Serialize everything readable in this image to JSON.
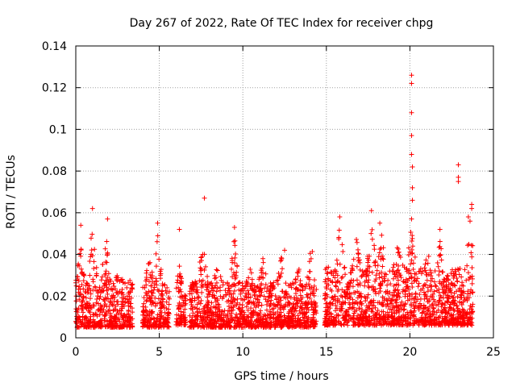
{
  "chart_data": {
    "type": "scatter",
    "title": "Day 267 of 2022, Rate Of TEC Index for receiver chpg",
    "xlabel": "GPS time / hours",
    "ylabel": "ROTI / TECUs",
    "xlim": [
      0,
      25
    ],
    "ylim": [
      0,
      0.14
    ],
    "x_ticks": [
      0,
      5,
      10,
      15,
      20,
      25
    ],
    "y_ticks": [
      0,
      0.02,
      0.04,
      0.06,
      0.08,
      0.1,
      0.12,
      0.14
    ],
    "x_tick_labels": [
      "0",
      "5",
      "10",
      "15",
      "20",
      "25"
    ],
    "y_tick_labels": [
      "0",
      "0.02",
      "0.04",
      "0.06",
      "0.08",
      "0.1",
      "0.12",
      "0.14"
    ],
    "grid": true,
    "marker": "+",
    "color": "#ff0000",
    "data_gaps_hours": [
      [
        3.4,
        4.0
      ],
      [
        5.6,
        6.0
      ],
      [
        6.6,
        6.8
      ],
      [
        14.4,
        14.9
      ]
    ],
    "series": [
      {
        "name": "ROTI",
        "notable_points": [
          {
            "x": 0.3,
            "y": 0.054
          },
          {
            "x": 1.0,
            "y": 0.062
          },
          {
            "x": 1.9,
            "y": 0.057
          },
          {
            "x": 4.9,
            "y": 0.055
          },
          {
            "x": 6.2,
            "y": 0.052
          },
          {
            "x": 7.7,
            "y": 0.067
          },
          {
            "x": 9.5,
            "y": 0.053
          },
          {
            "x": 12.5,
            "y": 0.042
          },
          {
            "x": 15.8,
            "y": 0.058
          },
          {
            "x": 17.7,
            "y": 0.061
          },
          {
            "x": 18.2,
            "y": 0.055
          },
          {
            "x": 20.1,
            "y": 0.126
          },
          {
            "x": 20.1,
            "y": 0.122
          },
          {
            "x": 20.1,
            "y": 0.108
          },
          {
            "x": 20.1,
            "y": 0.097
          },
          {
            "x": 20.1,
            "y": 0.088
          },
          {
            "x": 20.15,
            "y": 0.082
          },
          {
            "x": 20.15,
            "y": 0.072
          },
          {
            "x": 20.15,
            "y": 0.066
          },
          {
            "x": 20.1,
            "y": 0.057
          },
          {
            "x": 21.8,
            "y": 0.052
          },
          {
            "x": 22.9,
            "y": 0.083
          },
          {
            "x": 22.9,
            "y": 0.077
          },
          {
            "x": 22.9,
            "y": 0.075
          },
          {
            "x": 23.7,
            "y": 0.064
          },
          {
            "x": 23.7,
            "y": 0.062
          },
          {
            "x": 23.5,
            "y": 0.058
          },
          {
            "x": 23.6,
            "y": 0.056
          }
        ],
        "segments": [
          {
            "start": 0.0,
            "end": 3.4,
            "base_min": 0.005,
            "base_max": 0.028,
            "peaks": [
              {
                "x": 0.3,
                "y": 0.045
              },
              {
                "x": 1.0,
                "y": 0.058
              },
              {
                "x": 1.8,
                "y": 0.05
              },
              {
                "x": 2.5,
                "y": 0.035
              }
            ]
          },
          {
            "start": 4.0,
            "end": 5.6,
            "base_min": 0.005,
            "base_max": 0.026,
            "peaks": [
              {
                "x": 4.4,
                "y": 0.04
              },
              {
                "x": 4.9,
                "y": 0.05
              }
            ]
          },
          {
            "start": 6.0,
            "end": 6.6,
            "base_min": 0.006,
            "base_max": 0.022,
            "peaks": [
              {
                "x": 6.2,
                "y": 0.035
              }
            ]
          },
          {
            "start": 6.8,
            "end": 14.4,
            "base_min": 0.005,
            "base_max": 0.027,
            "peaks": [
              {
                "x": 7.6,
                "y": 0.055
              },
              {
                "x": 8.5,
                "y": 0.038
              },
              {
                "x": 9.5,
                "y": 0.05
              },
              {
                "x": 10.5,
                "y": 0.036
              },
              {
                "x": 11.2,
                "y": 0.042
              },
              {
                "x": 12.3,
                "y": 0.04
              },
              {
                "x": 13.4,
                "y": 0.035
              },
              {
                "x": 14.1,
                "y": 0.046
              }
            ]
          },
          {
            "start": 14.9,
            "end": 23.8,
            "base_min": 0.006,
            "base_max": 0.034,
            "peaks": [
              {
                "x": 15.8,
                "y": 0.055
              },
              {
                "x": 16.8,
                "y": 0.048
              },
              {
                "x": 17.7,
                "y": 0.058
              },
              {
                "x": 18.3,
                "y": 0.05
              },
              {
                "x": 19.3,
                "y": 0.046
              },
              {
                "x": 20.1,
                "y": 0.06
              },
              {
                "x": 21.1,
                "y": 0.04
              },
              {
                "x": 21.8,
                "y": 0.05
              },
              {
                "x": 23.6,
                "y": 0.06
              }
            ]
          }
        ]
      }
    ]
  }
}
